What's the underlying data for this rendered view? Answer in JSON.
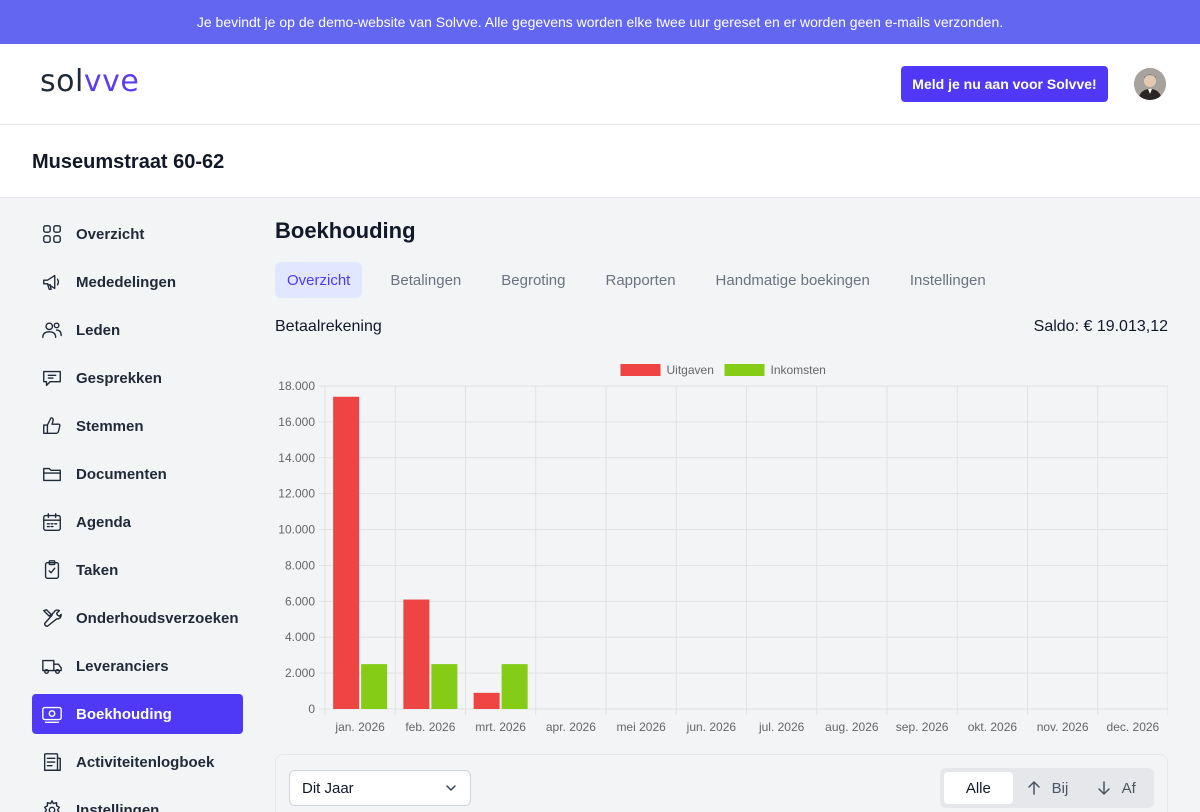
{
  "banner": {
    "text": "Je bevindt je op de demo-website van Solvve. Alle gegevens worden elke twee uur gereset en er worden geen e-mails verzonden."
  },
  "header": {
    "logo_main": "sol",
    "logo_accent": "vve",
    "signup_label": "Meld je nu aan voor Solvve!"
  },
  "page": {
    "title": "Museumstraat 60-62"
  },
  "sidebar": {
    "items": [
      {
        "label": "Overzicht",
        "icon": "grid-icon"
      },
      {
        "label": "Mededelingen",
        "icon": "megaphone-icon"
      },
      {
        "label": "Leden",
        "icon": "users-icon"
      },
      {
        "label": "Gesprekken",
        "icon": "chat-icon"
      },
      {
        "label": "Stemmen",
        "icon": "thumbs-up-icon"
      },
      {
        "label": "Documenten",
        "icon": "folder-icon"
      },
      {
        "label": "Agenda",
        "icon": "calendar-icon"
      },
      {
        "label": "Taken",
        "icon": "clipboard-check-icon"
      },
      {
        "label": "Onderhoudsverzoeken",
        "icon": "wrench-icon"
      },
      {
        "label": "Leveranciers",
        "icon": "truck-icon"
      },
      {
        "label": "Boekhouding",
        "icon": "money-icon"
      },
      {
        "label": "Activiteitenlogboek",
        "icon": "log-icon"
      },
      {
        "label": "Instellingen",
        "icon": "gear-icon"
      }
    ],
    "active_index": 10
  },
  "main": {
    "title": "Boekhouding",
    "tabs": [
      "Overzicht",
      "Betalingen",
      "Begroting",
      "Rapporten",
      "Handmatige boekingen",
      "Instellingen"
    ],
    "active_tab": 0,
    "account_label": "Betaalrekening",
    "saldo": "Saldo: € 19.013,12"
  },
  "chart_data": {
    "type": "bar",
    "categories": [
      "jan. 2026",
      "feb. 2026",
      "mrt. 2026",
      "apr. 2026",
      "mei 2026",
      "jun. 2026",
      "jul. 2026",
      "aug. 2026",
      "sep. 2026",
      "okt. 2026",
      "nov. 2026",
      "dec. 2026"
    ],
    "series": [
      {
        "name": "Uitgaven",
        "color": "#ef4444",
        "values": [
          17400,
          6100,
          900,
          0,
          0,
          0,
          0,
          0,
          0,
          0,
          0,
          0
        ]
      },
      {
        "name": "Inkomsten",
        "color": "#84cc16",
        "values": [
          2500,
          2500,
          2500,
          0,
          0,
          0,
          0,
          0,
          0,
          0,
          0,
          0
        ]
      }
    ],
    "yticks": [
      "0",
      "2.000",
      "4.000",
      "6.000",
      "8.000",
      "10.000",
      "12.000",
      "14.000",
      "16.000",
      "18.000"
    ],
    "ylim": [
      0,
      18000
    ],
    "grid": true,
    "legend": "top-center"
  },
  "filters": {
    "period": "Dit Jaar",
    "segments": [
      "Alle",
      "Bij",
      "Af"
    ],
    "active_segment": 0
  }
}
